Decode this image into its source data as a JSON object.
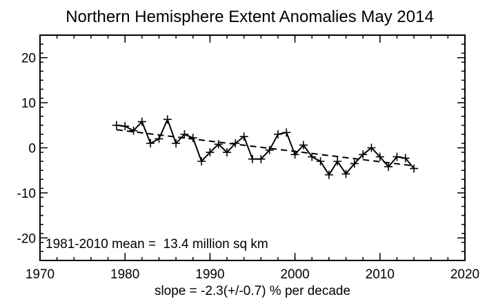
{
  "chart_data": {
    "type": "line",
    "title": "Northern Hemisphere Extent Anomalies May 2014",
    "xlabel": "slope = -2.3(+/-0.7) % per decade",
    "ylabel": "",
    "xlim": [
      1970,
      2020
    ],
    "ylim": [
      -25,
      25
    ],
    "x_ticks": [
      1970,
      1980,
      1990,
      2000,
      2010,
      2020
    ],
    "y_ticks": [
      20,
      10,
      0,
      -10,
      -20
    ],
    "x_minor_step": 2,
    "y_minor_step": 2,
    "annotation": "1981-2010 mean =  13.4 million sq km",
    "grid": false,
    "series": [
      {
        "style": "solid-with-plus-markers",
        "x": [
          1979,
          1980,
          1981,
          1982,
          1983,
          1984,
          1985,
          1986,
          1987,
          1988,
          1989,
          1990,
          1991,
          1992,
          1993,
          1994,
          1995,
          1996,
          1997,
          1998,
          1999,
          2000,
          2001,
          2002,
          2003,
          2004,
          2005,
          2006,
          2007,
          2008,
          2009,
          2010,
          2011,
          2012,
          2013,
          2014
        ],
        "values": [
          5.0,
          4.8,
          3.8,
          5.8,
          1.0,
          2.0,
          6.3,
          1.0,
          3.0,
          2.2,
          -3.0,
          -1.0,
          0.8,
          -1.0,
          1.0,
          2.5,
          -2.5,
          -2.5,
          -0.5,
          3.0,
          3.4,
          -1.5,
          0.6,
          -2.0,
          -3.0,
          -6.0,
          -3.0,
          -5.8,
          -3.5,
          -1.5,
          0.0,
          -2.0,
          -4.2,
          -2.0,
          -2.3,
          -4.6
        ]
      },
      {
        "style": "dashed-trend",
        "x": [
          1979,
          2014
        ],
        "values": [
          4.0,
          -4.0
        ]
      }
    ]
  }
}
